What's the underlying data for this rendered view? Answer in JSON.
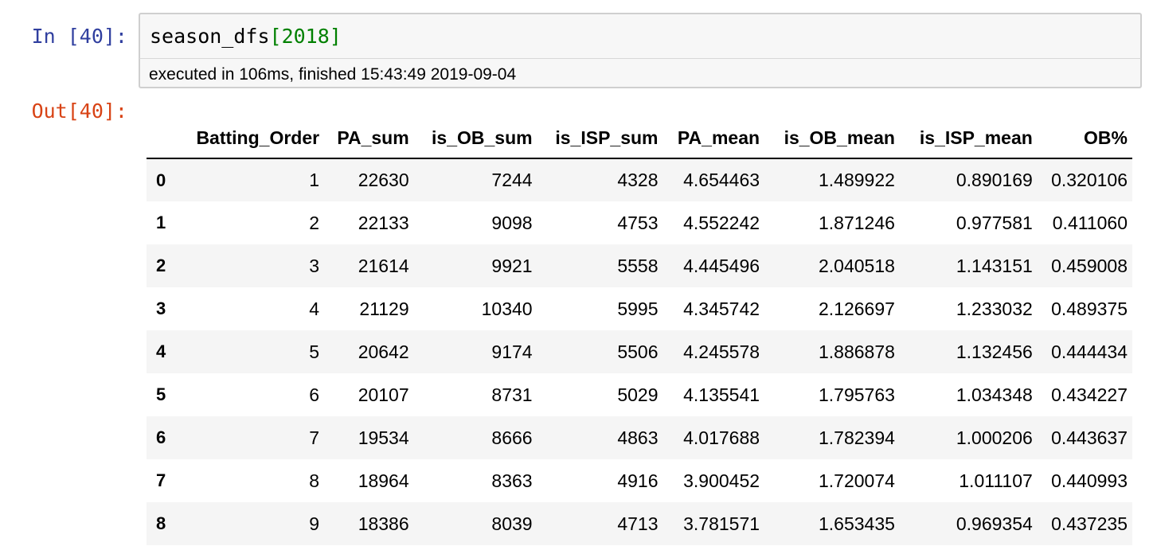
{
  "input_prompt": "In [40]:",
  "output_prompt": "Out[40]:",
  "code": {
    "name": "season_dfs",
    "open_bracket": "[",
    "arg": "2018",
    "close_bracket": "]"
  },
  "execution_info": "executed in 106ms, finished 15:43:49 2019-09-04",
  "table": {
    "columns": [
      "",
      "Batting_Order",
      "PA_sum",
      "is_OB_sum",
      "is_ISP_sum",
      "PA_mean",
      "is_OB_mean",
      "is_ISP_mean",
      "OB%"
    ],
    "rows": [
      {
        "index": "0",
        "cells": [
          "1",
          "22630",
          "7244",
          "4328",
          "4.654463",
          "1.489922",
          "0.890169",
          "0.320106"
        ]
      },
      {
        "index": "1",
        "cells": [
          "2",
          "22133",
          "9098",
          "4753",
          "4.552242",
          "1.871246",
          "0.977581",
          "0.411060"
        ]
      },
      {
        "index": "2",
        "cells": [
          "3",
          "21614",
          "9921",
          "5558",
          "4.445496",
          "2.040518",
          "1.143151",
          "0.459008"
        ]
      },
      {
        "index": "3",
        "cells": [
          "4",
          "21129",
          "10340",
          "5995",
          "4.345742",
          "2.126697",
          "1.233032",
          "0.489375"
        ]
      },
      {
        "index": "4",
        "cells": [
          "5",
          "20642",
          "9174",
          "5506",
          "4.245578",
          "1.886878",
          "1.132456",
          "0.444434"
        ]
      },
      {
        "index": "5",
        "cells": [
          "6",
          "20107",
          "8731",
          "5029",
          "4.135541",
          "1.795763",
          "1.034348",
          "0.434227"
        ]
      },
      {
        "index": "6",
        "cells": [
          "7",
          "19534",
          "8666",
          "4863",
          "4.017688",
          "1.782394",
          "1.000206",
          "0.443637"
        ]
      },
      {
        "index": "7",
        "cells": [
          "8",
          "18964",
          "8363",
          "4916",
          "3.900452",
          "1.720074",
          "1.011107",
          "0.440993"
        ]
      },
      {
        "index": "8",
        "cells": [
          "9",
          "18386",
          "8039",
          "4713",
          "3.781571",
          "1.653435",
          "0.969354",
          "0.437235"
        ]
      }
    ]
  },
  "colors": {
    "input_prompt": "#303F9F",
    "output_prompt": "#D84315",
    "code_number": "#008000",
    "cell_background": "#f7f7f7",
    "cell_border": "#cfcfcf",
    "row_stripe": "#f5f5f5"
  }
}
